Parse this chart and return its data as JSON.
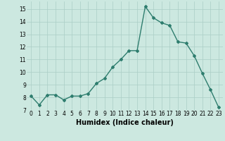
{
  "x": [
    0,
    1,
    2,
    3,
    4,
    5,
    6,
    7,
    8,
    9,
    10,
    11,
    12,
    13,
    14,
    15,
    16,
    17,
    18,
    19,
    20,
    21,
    22,
    23
  ],
  "y": [
    8.1,
    7.4,
    8.2,
    8.2,
    7.8,
    8.1,
    8.1,
    8.3,
    9.1,
    9.5,
    10.4,
    11.0,
    11.7,
    11.7,
    15.2,
    14.3,
    13.9,
    13.7,
    12.4,
    12.3,
    11.3,
    9.9,
    8.6,
    7.2
  ],
  "line_color": "#2e7d6e",
  "marker": "D",
  "marker_size": 2.0,
  "bg_color": "#cce8e0",
  "grid_color": "#aacec6",
  "xlabel": "Humidex (Indice chaleur)",
  "xlim": [
    -0.5,
    23.5
  ],
  "ylim": [
    7,
    15.6
  ],
  "yticks": [
    7,
    8,
    9,
    10,
    11,
    12,
    13,
    14,
    15
  ],
  "xticks": [
    0,
    1,
    2,
    3,
    4,
    5,
    6,
    7,
    8,
    9,
    10,
    11,
    12,
    13,
    14,
    15,
    16,
    17,
    18,
    19,
    20,
    21,
    22,
    23
  ],
  "tick_fontsize": 5.5,
  "xlabel_fontsize": 7,
  "line_width": 1.0
}
